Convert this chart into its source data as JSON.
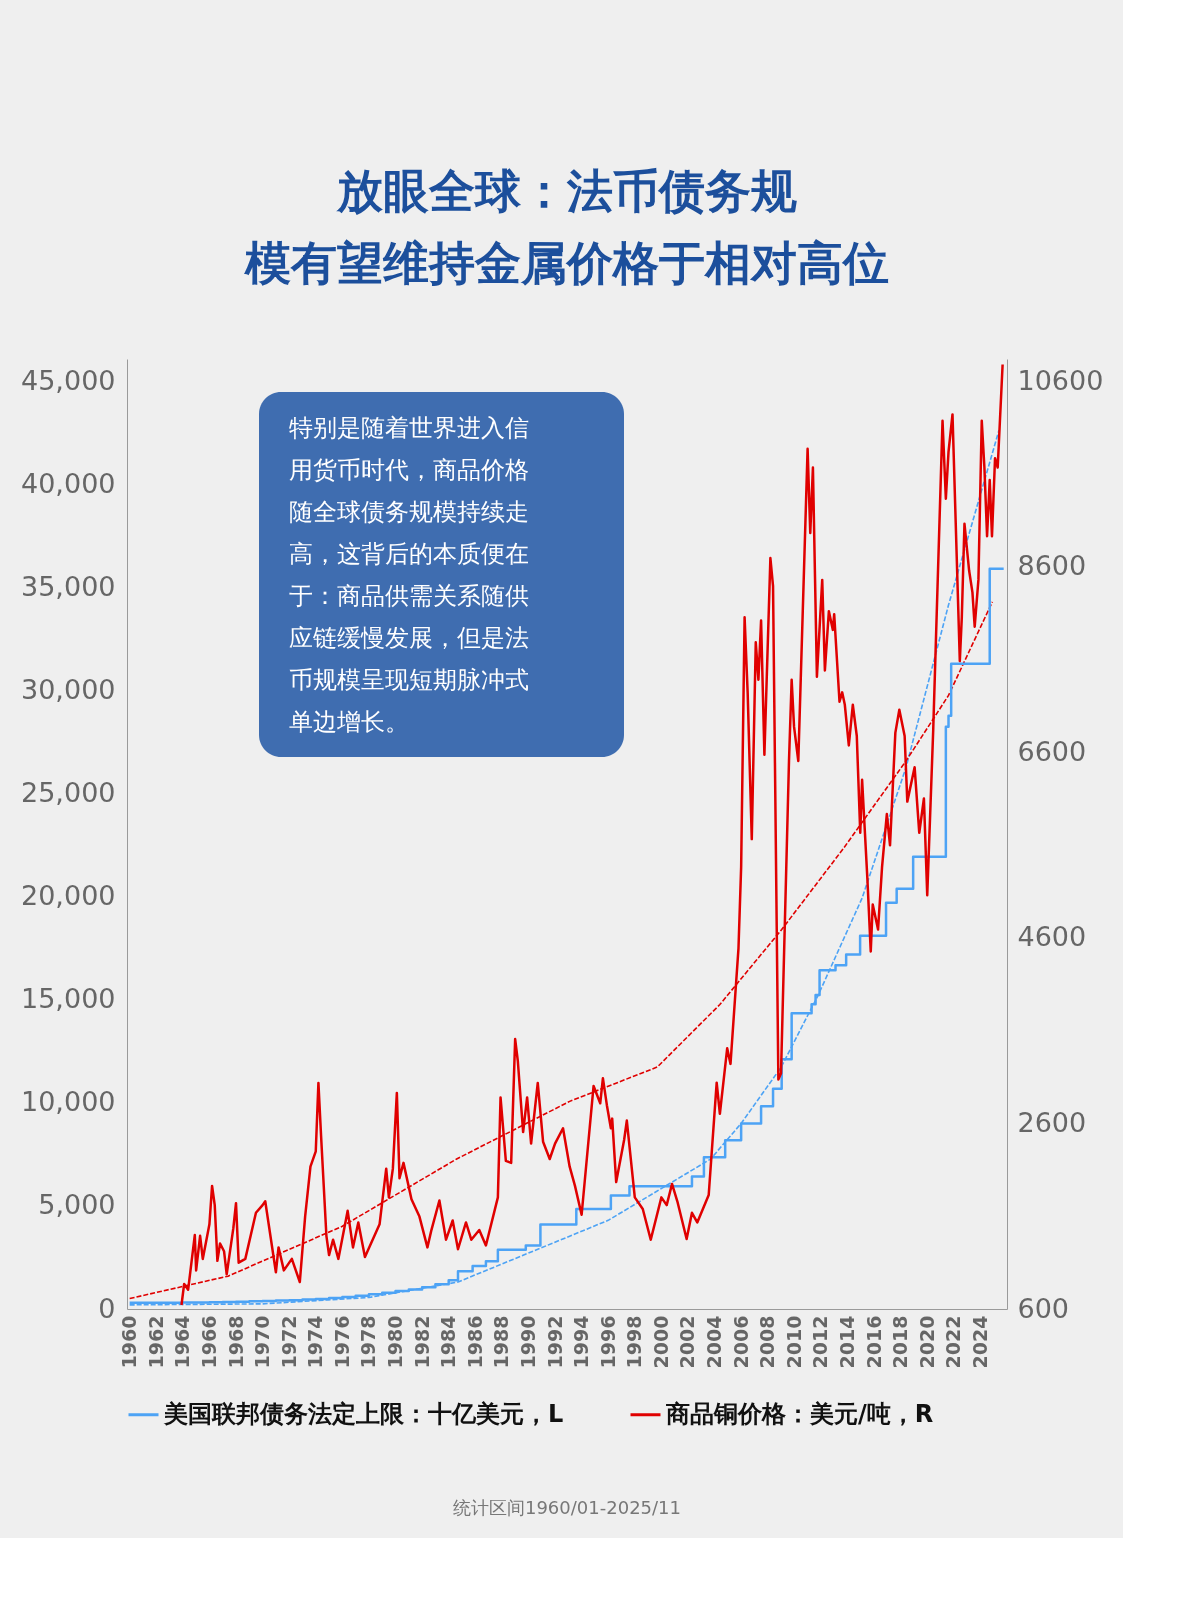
{
  "chart_data": {
    "type": "line",
    "title": "放眼全球：法币债务规模有望维持金属价格于相对高位",
    "xlim": [
      1959.8,
      2026
    ],
    "xticks": [
      1960,
      1962,
      1964,
      1966,
      1968,
      1970,
      1972,
      1974,
      1976,
      1978,
      1980,
      1982,
      1984,
      1986,
      1988,
      1990,
      1992,
      1994,
      1996,
      1998,
      2000,
      2002,
      2004,
      2006,
      2008,
      2010,
      2012,
      2014,
      2016,
      2018,
      2020,
      2022,
      2024
    ],
    "ylim": [
      0,
      46080
    ],
    "yticks": [
      0,
      {
        "value": 5000,
        "label": "5,000"
      },
      {
        "value": 10000,
        "label": "10,000"
      },
      {
        "value": 15000,
        "label": "15,000"
      },
      {
        "value": 20000,
        "label": "20,000"
      },
      {
        "value": 25000,
        "label": "25,000"
      },
      {
        "value": 30000,
        "label": "30,000"
      },
      {
        "value": 35000,
        "label": "35,000"
      },
      {
        "value": 40000,
        "label": "40,000"
      },
      {
        "value": 45000,
        "label": "45,000"
      }
    ],
    "y2lim": [
      600,
      10840
    ],
    "y2ticks": [
      600,
      2600,
      4600,
      6600,
      8600,
      10600
    ],
    "legend": "bottom",
    "annotations": [
      "特别是随着世界进入信用货币时代，商品价格随全球债务规模持续走高，这背后的本质便在于：商品供需关系随供应链缓慢发展，但是法币规模呈现短期脉冲式单边增长。",
      "统计区间1960/01-2025/11"
    ],
    "series": [
      {
        "line_style": "dashed",
        "color": "#4da3f5",
        "x": [
          1960,
          1970,
          1978,
          1984.7,
          1996.0,
          2003.7,
          2006.0,
          2009.0,
          2011.8,
          2015.1,
          2018.4,
          2021.6,
          2025.4
        ],
        "values": [
          200,
          250,
          560,
          1310,
          4300,
          7270,
          9000,
          11720,
          15230,
          19930,
          26260,
          34150,
          42630
        ]
      },
      {
        "line_style": "dashed",
        "color": "#e00000",
        "axis": "y2",
        "x": [
          1960.0,
          1967.4,
          1976.0,
          1984.6,
          1993.1,
          1999.7,
          2004.4,
          2009.05,
          2013.7,
          2018.4,
          2021.6,
          2024.9
        ],
        "values": [
          713,
          954,
          1492,
          2217,
          2838,
          3209,
          3882,
          4690,
          5565,
          6507,
          7214,
          8223
        ]
      },
      {
        "name": "美国联邦债务法定上限：十亿美元，L",
        "type": "step",
        "color": "#4da3f5",
        "x": [
          1960,
          1961,
          1962,
          1963,
          1964,
          1965,
          1966,
          1967,
          1968,
          1969,
          1970,
          1971,
          1972,
          1973,
          1974,
          1975,
          1976,
          1977,
          1978,
          1979,
          1980,
          1981,
          1982,
          1983,
          1984,
          1984.7,
          1985.8,
          1986.8,
          1987.7,
          1989.8,
          1990.9,
          1993.6,
          1996.2,
          1997.6,
          2002.3,
          2003.2,
          2004.8,
          2006.0,
          2007.5,
          2008.4,
          2009.05,
          2009.8,
          2011.3,
          2011.6,
          2011.9,
          2013.1,
          2013.9,
          2014.95,
          2016.9,
          2017.7,
          2018.94,
          2021.4,
          2021.6,
          2021.8,
          2024.7,
          2025.75
        ],
        "values": [
          300,
          300,
          300,
          305,
          310,
          320,
          330,
          340,
          355,
          370,
          390,
          410,
          430,
          460,
          490,
          530,
          580,
          640,
          710,
          790,
          870,
          950,
          1050,
          1200,
          1400,
          1830,
          2080,
          2320,
          2870,
          3085,
          4100,
          4850,
          5500,
          5950,
          6430,
          7360,
          8190,
          9000,
          9840,
          10680,
          12115,
          14340,
          14785,
          15230,
          16430,
          16675,
          17190,
          18110,
          19710,
          20390,
          21935,
          28237,
          28780,
          31300,
          35905,
          35905
        ]
      },
      {
        "name": "商品铜价格：美元/吨，R",
        "color": "#e00000",
        "axis": "y2",
        "x": [
          1963.9,
          1964.1,
          1964.4,
          1964.9,
          1965.0,
          1965.3,
          1965.5,
          1966.0,
          1966.2,
          1966.4,
          1966.6,
          1966.8,
          1967.1,
          1967.3,
          1967.8,
          1968.0,
          1968.2,
          1968.7,
          1969.5,
          1970.0,
          1970.2,
          1971.0,
          1971.2,
          1971.6,
          1972.2,
          1972.8,
          1973.2,
          1973.6,
          1974.0,
          1974.2,
          1974.4,
          1974.8,
          1975.0,
          1975.3,
          1975.7,
          1976.4,
          1976.8,
          1977.2,
          1977.7,
          1978.8,
          1979.3,
          1979.5,
          1979.8,
          1980.1,
          1980.3,
          1980.6,
          1981.2,
          1981.8,
          1982.4,
          1982.7,
          1983.3,
          1983.8,
          1984.3,
          1984.7,
          1985.3,
          1985.7,
          1986.3,
          1986.8,
          1987.7,
          1987.9,
          1988.3,
          1988.7,
          1989.0,
          1989.2,
          1989.6,
          1989.9,
          1990.2,
          1990.7,
          1991.1,
          1991.6,
          1992.0,
          1992.6,
          1993.1,
          1993.5,
          1994.0,
          1994.9,
          1995.4,
          1995.6,
          1995.9,
          1996.2,
          1996.3,
          1996.6,
          1997.2,
          1997.4,
          1998.0,
          1998.6,
          1999.2,
          2000.0,
          2000.4,
          2000.8,
          2001.2,
          2001.9,
          2002.3,
          2002.7,
          2003.56,
          2004.16,
          2004.4,
          2004.95,
          2005.2,
          2005.8,
          2006.0,
          2006.26,
          2006.49,
          2006.8,
          2007.1,
          2007.3,
          2007.5,
          2007.75,
          2008.2,
          2008.4,
          2008.8,
          2009.0,
          2009.6,
          2009.8,
          2009.98,
          2010.3,
          2011.0,
          2011.2,
          2011.4,
          2011.7,
          2012.1,
          2012.3,
          2012.6,
          2012.9,
          2013.0,
          2013.4,
          2013.6,
          2013.8,
          2014.1,
          2014.4,
          2014.7,
          2014.96,
          2015.1,
          2015.5,
          2015.75,
          2015.9,
          2016.3,
          2016.6,
          2016.96,
          2017.2,
          2017.6,
          2017.9,
          2018.3,
          2018.5,
          2019.05,
          2019.4,
          2019.75,
          2020.0,
          2020.45,
          2021.15,
          2021.4,
          2021.6,
          2021.9,
          2022.45,
          2022.6,
          2022.8,
          2023.15,
          2023.4,
          2023.57,
          2023.85,
          2024.1,
          2024.3,
          2024.5,
          2024.7,
          2024.87,
          2025.1,
          2025.3,
          2025.67
        ],
        "values": [
          643,
          870,
          808,
          1397,
          1016,
          1389,
          1140,
          1513,
          1927,
          1720,
          1119,
          1306,
          1223,
          974,
          1471,
          1741,
          1099,
          1140,
          1637,
          1720,
          1761,
          995,
          1264,
          1016,
          1140,
          891,
          1596,
          2134,
          2300,
          3037,
          2465,
          1389,
          1181,
          1347,
          1140,
          1658,
          1264,
          1533,
          1161,
          1513,
          2113,
          1803,
          2113,
          2929,
          2010,
          2175,
          1782,
          1596,
          1264,
          1451,
          1770,
          1347,
          1554,
          1244,
          1533,
          1347,
          1451,
          1285,
          1803,
          2880,
          2196,
          2175,
          3509,
          3273,
          2507,
          2880,
          2383,
          3037,
          2403,
          2217,
          2383,
          2548,
          2134,
          1927,
          1616,
          3004,
          2817,
          3087,
          2797,
          2548,
          2652,
          1968,
          2424,
          2631,
          1803,
          1678,
          1347,
          1803,
          1720,
          1948,
          1761,
          1355,
          1637,
          1533,
          1829,
          3040,
          2704,
          3410,
          3242,
          4488,
          5363,
          8055,
          7247,
          5665,
          7786,
          7382,
          8021,
          6574,
          8694,
          8392,
          3074,
          3141,
          6507,
          7382,
          6877,
          6507,
          9872,
          8964,
          9670,
          7416,
          8459,
          7483,
          8122,
          7920,
          8089,
          7146,
          7247,
          7113,
          6675,
          7113,
          6776,
          5733,
          6305,
          5228,
          4454,
          4959,
          4690,
          5363,
          5935,
          5598,
          6810,
          7059,
          6776,
          6069,
          6440,
          5733,
          6103,
          5060,
          6843,
          10175,
          9334,
          9839,
          10243,
          7584,
          8055,
          9065,
          8560,
          8324,
          7954,
          8459,
          10175,
          9670,
          8930,
          9536,
          8930,
          9771,
          9670,
          10781
        ]
      }
    ]
  }
}
